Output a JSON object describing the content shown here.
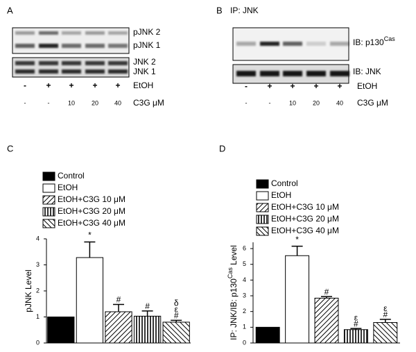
{
  "panels": [
    {
      "label": "A",
      "bands": [
        "pJNK 2",
        "pJNK 1",
        "JNK 2",
        "JNK 1"
      ],
      "etoh": [
        "-",
        "+",
        "+",
        "+",
        "+"
      ],
      "etoh_label": "EtOH",
      "c3g": [
        "-",
        "-",
        "10",
        "20",
        "40"
      ],
      "c3g_label": "C3G  μM"
    },
    {
      "label": "B",
      "title": "IP: JNK",
      "ib1": "IB:  p130",
      "ib1_sup": "Cas",
      "ib2": "IB: JNK",
      "etoh": [
        "-",
        "+",
        "+",
        "+",
        "+"
      ],
      "etoh_label": "EtOH",
      "c3g": [
        "-",
        "-",
        "10",
        "20",
        "40"
      ],
      "c3g_label": "C3G  μM"
    }
  ],
  "chart_data": [
    {
      "type": "bar",
      "label": "C",
      "ylabel": "pJNK Level",
      "ylim": [
        0,
        4
      ],
      "yticks": [
        0,
        1,
        2,
        3,
        4
      ],
      "series": [
        {
          "name": "Control",
          "fill": "solid",
          "values": [
            1.0
          ]
        },
        {
          "name": "EtOH",
          "fill": "none",
          "values": [
            3.28
          ],
          "errors": [
            0.6
          ],
          "annotations": [
            "*"
          ]
        },
        {
          "name": "EtOH+C3G 10 μM",
          "fill": "hatch-right",
          "values": [
            1.2
          ],
          "errors": [
            0.28
          ],
          "annotations": [
            "#"
          ]
        },
        {
          "name": "EtOH+C3G 20 μM",
          "fill": "vertical",
          "values": [
            1.03
          ],
          "errors": [
            0.2
          ],
          "annotations": [
            "#"
          ]
        },
        {
          "name": "EtOH+C3G 40 μM",
          "fill": "hatch-left",
          "values": [
            0.8
          ],
          "errors": [
            0.07
          ],
          "annotations": [
            "δ",
            "ε",
            "#"
          ]
        }
      ]
    },
    {
      "type": "bar",
      "label": "D",
      "ylabel": "IP: JNK/IB: p130",
      "ylabel_sup": "Cas",
      "ylabel_end": " Level",
      "ylim": [
        0,
        6.4
      ],
      "yticks": [
        0,
        1,
        2,
        3,
        4,
        5,
        6
      ],
      "series": [
        {
          "name": "Control",
          "fill": "solid",
          "values": [
            1.0
          ]
        },
        {
          "name": "EtOH",
          "fill": "none",
          "values": [
            5.55
          ],
          "errors": [
            0.6
          ],
          "annotations": [
            "*"
          ]
        },
        {
          "name": "EtOH+C3G 10 μM",
          "fill": "hatch-right",
          "values": [
            2.85
          ],
          "errors": [
            0.1
          ],
          "annotations": [
            "#"
          ]
        },
        {
          "name": "EtOH+C3G 20 μM",
          "fill": "vertical",
          "values": [
            0.85
          ],
          "errors": [
            0.07
          ],
          "annotations": [
            "ε",
            "#"
          ]
        },
        {
          "name": "EtOH+C3G 40 μM",
          "fill": "hatch-left",
          "values": [
            1.3
          ],
          "errors": [
            0.2
          ],
          "annotations": [
            "ε",
            "#"
          ]
        }
      ]
    }
  ]
}
